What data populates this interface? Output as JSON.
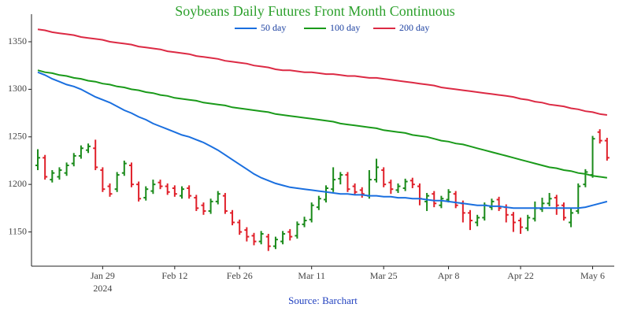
{
  "chart_data": {
    "type": "ohlc",
    "title": "Soybeans Daily Futures Front Month Continuous",
    "source": "Source: Barchart",
    "year_label": "2024",
    "categories": [
      null,
      null,
      null,
      null,
      null,
      null,
      null,
      null,
      null,
      "Jan 29",
      null,
      null,
      null,
      null,
      null,
      null,
      null,
      null,
      null,
      "Feb 12",
      null,
      null,
      null,
      null,
      null,
      null,
      null,
      null,
      "Feb 26",
      null,
      null,
      null,
      null,
      null,
      null,
      null,
      null,
      null,
      "Mar 11",
      null,
      null,
      null,
      null,
      null,
      null,
      null,
      null,
      null,
      "Mar 25",
      null,
      null,
      null,
      null,
      null,
      null,
      null,
      null,
      "Apr 8",
      null,
      null,
      null,
      null,
      null,
      null,
      null,
      null,
      null,
      "Apr 22",
      null,
      null,
      null,
      null,
      null,
      null,
      null,
      null,
      null,
      "May 6",
      null,
      null
    ],
    "open": [
      1220,
      1228,
      1205,
      1208,
      1212,
      1222,
      1230,
      1236,
      1238,
      1215,
      1198,
      1195,
      1212,
      1220,
      1200,
      1186,
      1193,
      1202,
      1198,
      1196,
      1188,
      1196,
      1186,
      1178,
      1172,
      1182,
      1188,
      1170,
      1160,
      1152,
      1146,
      1140,
      1145,
      1135,
      1140,
      1150,
      1146,
      1158,
      1163,
      1176,
      1184,
      1195,
      1206,
      1210,
      1198,
      1194,
      1188,
      1205,
      1215,
      1202,
      1194,
      1196,
      1204,
      1198,
      1182,
      1190,
      1178,
      1184,
      1190,
      1180,
      1170,
      1160,
      1165,
      1176,
      1184,
      1176,
      1168,
      1162,
      1154,
      1164,
      1174,
      1180,
      1186,
      1178,
      1160,
      1172,
      1200,
      1210,
      1255,
      1246
    ],
    "high": [
      1237,
      1231,
      1215,
      1218,
      1223,
      1233,
      1241,
      1243,
      1247,
      1218,
      1201,
      1213,
      1225,
      1223,
      1203,
      1198,
      1205,
      1205,
      1201,
      1199,
      1198,
      1199,
      1189,
      1181,
      1185,
      1193,
      1191,
      1173,
      1163,
      1155,
      1149,
      1151,
      1148,
      1145,
      1151,
      1153,
      1161,
      1166,
      1181,
      1188,
      1199,
      1218,
      1213,
      1213,
      1201,
      1197,
      1215,
      1227,
      1218,
      1205,
      1201,
      1206,
      1207,
      1201,
      1191,
      1193,
      1188,
      1195,
      1193,
      1183,
      1173,
      1168,
      1181,
      1185,
      1187,
      1179,
      1171,
      1165,
      1168,
      1182,
      1186,
      1191,
      1189,
      1181,
      1175,
      1201,
      1216,
      1251,
      1258,
      1249
    ],
    "low": [
      1215,
      1205,
      1202,
      1205,
      1209,
      1219,
      1227,
      1233,
      1215,
      1192,
      1187,
      1192,
      1209,
      1197,
      1182,
      1183,
      1190,
      1195,
      1189,
      1187,
      1185,
      1185,
      1172,
      1168,
      1169,
      1179,
      1169,
      1157,
      1147,
      1140,
      1136,
      1137,
      1130,
      1132,
      1137,
      1141,
      1143,
      1155,
      1160,
      1173,
      1181,
      1192,
      1200,
      1192,
      1189,
      1186,
      1185,
      1202,
      1197,
      1190,
      1191,
      1193,
      1196,
      1178,
      1172,
      1176,
      1175,
      1181,
      1175,
      1160,
      1152,
      1156,
      1162,
      1173,
      1172,
      1160,
      1150,
      1148,
      1151,
      1161,
      1171,
      1177,
      1168,
      1162,
      1155,
      1169,
      1197,
      1207,
      1243,
      1225
    ],
    "close": [
      1228,
      1208,
      1212,
      1215,
      1220,
      1230,
      1238,
      1240,
      1218,
      1195,
      1190,
      1210,
      1222,
      1200,
      1185,
      1195,
      1200,
      1198,
      1192,
      1190,
      1195,
      1188,
      1175,
      1172,
      1182,
      1190,
      1172,
      1160,
      1150,
      1145,
      1140,
      1148,
      1135,
      1142,
      1148,
      1145,
      1158,
      1162,
      1178,
      1185,
      1196,
      1205,
      1210,
      1195,
      1192,
      1190,
      1205,
      1218,
      1200,
      1195,
      1198,
      1203,
      1200,
      1185,
      1188,
      1180,
      1185,
      1192,
      1178,
      1170,
      1162,
      1165,
      1178,
      1182,
      1175,
      1168,
      1160,
      1155,
      1165,
      1175,
      1180,
      1185,
      1178,
      1165,
      1170,
      1198,
      1213,
      1248,
      1246,
      1228
    ],
    "up_color": "#1a8a1a",
    "down_color": "#e0202a",
    "series": [
      {
        "name": "50 day",
        "color": "#1a6fdf",
        "values": [
          1318,
          1315,
          1311,
          1308,
          1305,
          1303,
          1300,
          1296,
          1292,
          1289,
          1286,
          1282,
          1278,
          1275,
          1271,
          1268,
          1264,
          1261,
          1258,
          1255,
          1252,
          1250,
          1247,
          1244,
          1240,
          1236,
          1231,
          1226,
          1221,
          1216,
          1211,
          1207,
          1204,
          1201,
          1199,
          1197,
          1196,
          1195,
          1194,
          1193,
          1192,
          1191,
          1190,
          1190,
          1189,
          1189,
          1188,
          1188,
          1187,
          1187,
          1186,
          1186,
          1185,
          1185,
          1184,
          1183,
          1183,
          1182,
          1181,
          1180,
          1179,
          1178,
          1178,
          1177,
          1177,
          1176,
          1175,
          1175,
          1175,
          1175,
          1175,
          1175,
          1175,
          1175,
          1175,
          1175,
          1176,
          1178,
          1180,
          1182
        ]
      },
      {
        "name": "100 day",
        "color": "#1a9a1a",
        "values": [
          1320,
          1318,
          1317,
          1315,
          1314,
          1312,
          1311,
          1309,
          1308,
          1306,
          1305,
          1303,
          1302,
          1300,
          1299,
          1297,
          1296,
          1294,
          1293,
          1291,
          1290,
          1289,
          1288,
          1286,
          1285,
          1284,
          1283,
          1281,
          1280,
          1279,
          1278,
          1277,
          1276,
          1274,
          1273,
          1272,
          1271,
          1270,
          1269,
          1268,
          1267,
          1266,
          1264,
          1263,
          1262,
          1261,
          1260,
          1259,
          1257,
          1256,
          1255,
          1254,
          1252,
          1251,
          1250,
          1248,
          1246,
          1245,
          1243,
          1242,
          1240,
          1238,
          1236,
          1234,
          1232,
          1230,
          1228,
          1226,
          1224,
          1222,
          1220,
          1218,
          1217,
          1215,
          1214,
          1212,
          1211,
          1209,
          1208,
          1207
        ]
      },
      {
        "name": "200 day",
        "color": "#dc2a44",
        "values": [
          1363,
          1362,
          1360,
          1359,
          1358,
          1357,
          1355,
          1354,
          1353,
          1352,
          1350,
          1349,
          1348,
          1347,
          1345,
          1344,
          1343,
          1342,
          1340,
          1339,
          1338,
          1337,
          1335,
          1334,
          1333,
          1332,
          1330,
          1329,
          1328,
          1327,
          1325,
          1324,
          1323,
          1321,
          1320,
          1320,
          1319,
          1318,
          1318,
          1317,
          1316,
          1316,
          1315,
          1314,
          1314,
          1313,
          1312,
          1312,
          1311,
          1310,
          1309,
          1308,
          1307,
          1306,
          1305,
          1304,
          1302,
          1301,
          1300,
          1299,
          1298,
          1297,
          1296,
          1295,
          1294,
          1293,
          1292,
          1290,
          1289,
          1287,
          1286,
          1284,
          1283,
          1282,
          1280,
          1279,
          1277,
          1276,
          1274,
          1273
        ]
      }
    ],
    "ylim": [
      1114,
      1379
    ],
    "yticks": [
      1150,
      1200,
      1250,
      1300,
      1350
    ],
    "grid": false,
    "legend": "top"
  }
}
